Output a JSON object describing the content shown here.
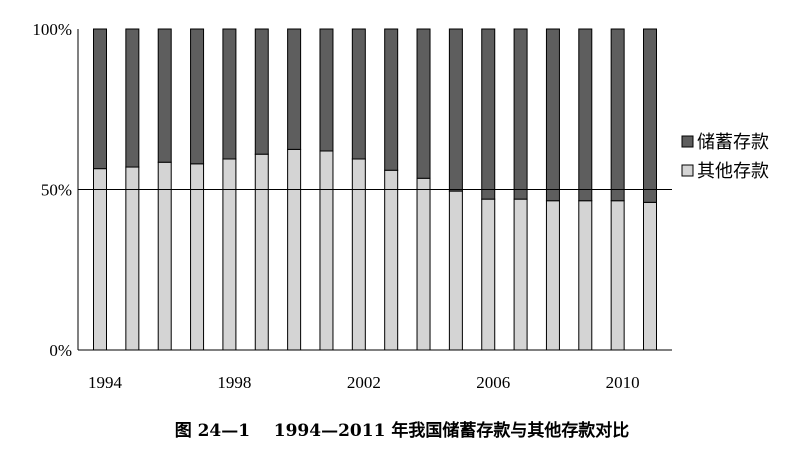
{
  "chart_data": {
    "type": "bar",
    "stacked": true,
    "percent": true,
    "categories": [
      "1994",
      "1995",
      "1996",
      "1997",
      "1998",
      "1999",
      "2000",
      "2001",
      "2002",
      "2003",
      "2004",
      "2005",
      "2006",
      "2007",
      "2008",
      "2009",
      "2010",
      "2011"
    ],
    "x_tick_labels": [
      "1994",
      "1998",
      "2002",
      "2006",
      "2010"
    ],
    "y_tick_labels": [
      "0%",
      "50%",
      "100%"
    ],
    "ylim": [
      0,
      100
    ],
    "reference_line": 50,
    "series": [
      {
        "name": "其他存款",
        "color": "#d4d4d4",
        "values": [
          56.5,
          57,
          58.5,
          58,
          59.5,
          61,
          62.5,
          62,
          59.5,
          56,
          53.5,
          49.5,
          47,
          47,
          46.5,
          46.5,
          46.5,
          46
        ]
      },
      {
        "name": "储蓄存款",
        "color": "#5e5e5e",
        "values": [
          43.5,
          43,
          41.5,
          42,
          40.5,
          39,
          37.5,
          38,
          40.5,
          44,
          46.5,
          50.5,
          53,
          53,
          53.5,
          53.5,
          53.5,
          54
        ]
      }
    ],
    "legend_position": "right",
    "title": "图 24—1    1994—2011 年我国储蓄存款与其他存款对比"
  }
}
